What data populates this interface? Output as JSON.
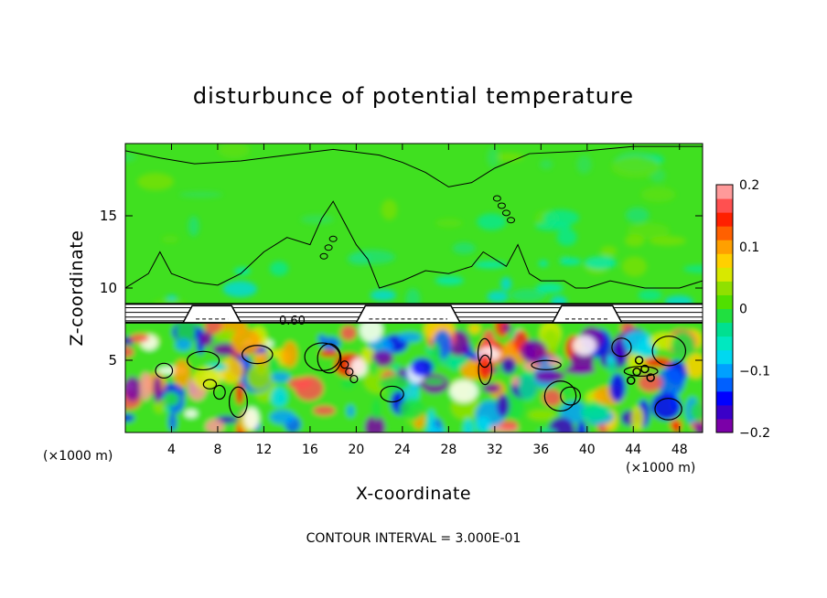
{
  "chart_data": {
    "type": "heatmap",
    "title": "disturbunce of potential temperature",
    "xlabel": "X-coordinate",
    "ylabel": "Z-coordinate",
    "x_unit_left": "(×1000 m)",
    "x_unit_right": "(×1000 m)",
    "xlim": [
      0,
      50
    ],
    "ylim": [
      0,
      20
    ],
    "x_ticks": [
      "4",
      "8",
      "12",
      "16",
      "20",
      "24",
      "28",
      "32",
      "36",
      "40",
      "44",
      "48"
    ],
    "y_ticks": [
      "5",
      "10",
      "15"
    ],
    "x_tick_values": [
      4,
      8,
      12,
      16,
      20,
      24,
      28,
      32,
      36,
      40,
      44,
      48
    ],
    "y_tick_values": [
      5,
      10,
      15
    ],
    "colorbar": {
      "range": [
        -0.2,
        0.2
      ],
      "labels": [
        "0.2",
        "0.1",
        "0",
        "−0.1",
        "−0.2"
      ],
      "label_values": [
        0.2,
        0.1,
        0,
        -0.1,
        -0.2
      ],
      "colors": [
        "#7b00a8",
        "#3a00c8",
        "#0000ff",
        "#0060ff",
        "#00a0ff",
        "#00d8f0",
        "#00e8c0",
        "#00e090",
        "#20e040",
        "#50e000",
        "#90e000",
        "#d8e800",
        "#ffd000",
        "#ffa000",
        "#ff6000",
        "#ff2000",
        "#ff5050",
        "#ff9a9a"
      ]
    },
    "contour_labels": [
      "0.60"
    ],
    "footer": "CONTOUR INTERVAL = 3.000E-01",
    "field_description_regions": {
      "upper_value_approx": 0.0,
      "band_z": [
        7.6,
        8.9
      ]
    }
  }
}
